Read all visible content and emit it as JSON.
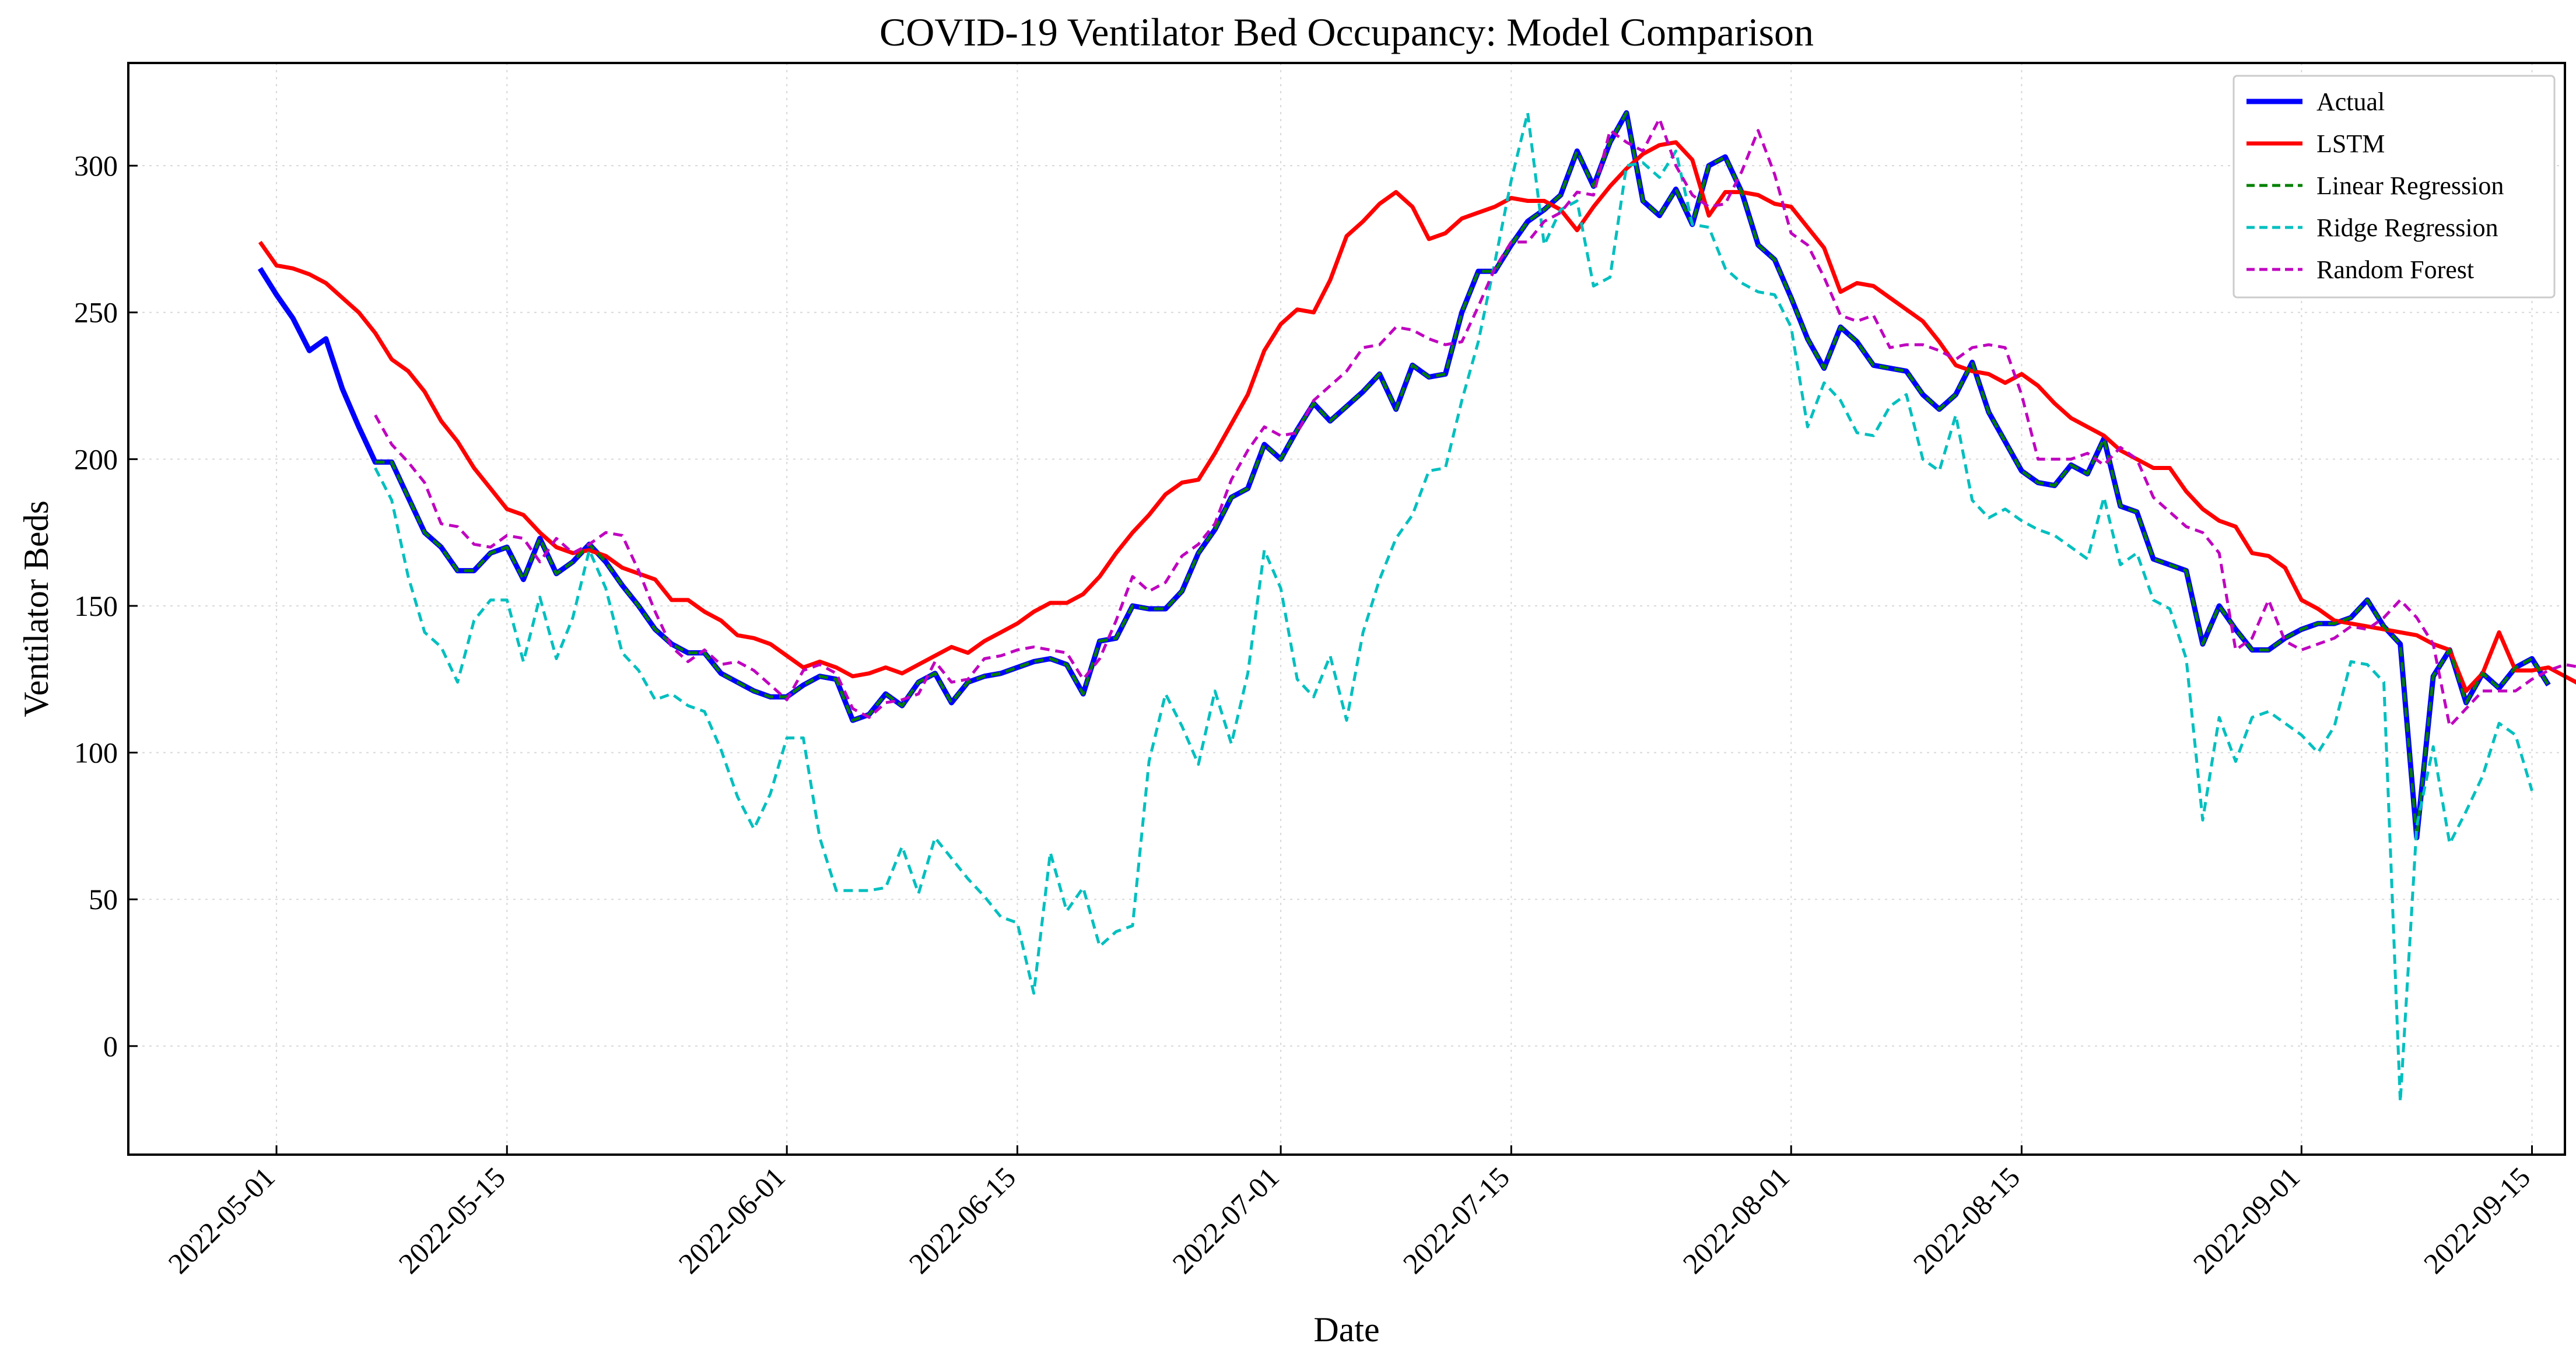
{
  "chart_data": {
    "type": "line",
    "title": "COVID-19 Ventilator Bed Occupancy: Model Comparison",
    "xlabel": "Date",
    "ylabel": "Ventilator Beds",
    "xlim": [
      "2022-04-22",
      "2022-09-17"
    ],
    "ylim": [
      -37,
      335
    ],
    "x_ticks": [
      "2022-05-01",
      "2022-05-15",
      "2022-06-01",
      "2022-06-15",
      "2022-07-01",
      "2022-07-15",
      "2022-08-01",
      "2022-08-15",
      "2022-09-01",
      "2022-09-15"
    ],
    "y_ticks": [
      0,
      50,
      100,
      150,
      200,
      250,
      300
    ],
    "grid": true,
    "legend_position": "top-right",
    "x_start_date": "2022-04-30",
    "colors": {
      "actual": "#0000ff",
      "lstm": "#ff0000",
      "linear": "#008000",
      "ridge": "#00bfbf",
      "forest": "#bf00bf"
    },
    "series": [
      {
        "name": "Actual",
        "key": "actual",
        "start": "2022-04-30",
        "values": [
          265,
          256,
          248,
          237,
          241,
          224,
          211,
          199,
          199,
          187,
          175,
          170,
          162,
          162,
          168,
          170,
          159,
          173,
          161,
          165,
          171,
          165,
          157,
          150,
          142,
          137,
          134,
          134,
          127,
          124,
          121,
          119,
          119,
          123,
          126,
          125,
          111,
          113,
          120,
          116,
          124,
          127,
          117,
          124,
          126,
          127,
          129,
          131,
          132,
          130,
          120,
          138,
          139,
          150,
          149,
          149,
          155,
          168,
          176,
          187,
          190,
          205,
          200,
          210,
          219,
          213,
          218,
          223,
          229,
          217,
          232,
          228,
          229,
          250,
          264,
          264,
          273,
          281,
          285,
          290,
          305,
          293,
          308,
          318,
          288,
          283,
          292,
          280,
          300,
          303,
          291,
          273,
          268,
          255,
          241,
          231,
          245,
          240,
          232,
          231,
          230,
          222,
          217,
          222,
          233,
          216,
          206,
          196,
          192,
          191,
          198,
          195,
          207,
          184,
          182,
          166,
          164,
          162,
          137,
          150,
          142,
          135,
          135,
          139,
          142,
          144,
          144,
          146,
          152,
          143,
          137,
          71,
          126,
          135,
          117,
          127,
          122,
          129,
          132,
          123
        ]
      },
      {
        "name": "LSTM",
        "key": "lstm",
        "start": "2022-04-30",
        "values": [
          274,
          266,
          265,
          263,
          260,
          255,
          250,
          243,
          234,
          230,
          223,
          213,
          206,
          197,
          190,
          183,
          181,
          175,
          170,
          168,
          169,
          167,
          163,
          161,
          159,
          152,
          152,
          148,
          145,
          140,
          139,
          137,
          133,
          129,
          131,
          129,
          126,
          127,
          129,
          127,
          130,
          133,
          136,
          134,
          138,
          141,
          144,
          148,
          151,
          151,
          154,
          160,
          168,
          175,
          181,
          188,
          192,
          193,
          202,
          212,
          222,
          237,
          246,
          251,
          250,
          261,
          276,
          281,
          287,
          291,
          286,
          275,
          277,
          282,
          284,
          286,
          289,
          288,
          288,
          285,
          278,
          286,
          293,
          299,
          304,
          307,
          308,
          302,
          283,
          291,
          291,
          290,
          287,
          286,
          279,
          272,
          257,
          260,
          259,
          255,
          251,
          247,
          240,
          232,
          230,
          229,
          226,
          229,
          225,
          219,
          214,
          211,
          208,
          203,
          200,
          197,
          197,
          189,
          183,
          179,
          177,
          168,
          167,
          163,
          152,
          149,
          145,
          144,
          143,
          142,
          141,
          140,
          137,
          135,
          121,
          127,
          141,
          128,
          128,
          129,
          126,
          123,
          124
        ]
      },
      {
        "name": "Linear Regression",
        "key": "linear",
        "start": "2022-05-07",
        "values": [
          199,
          199,
          187,
          175,
          170,
          162,
          162,
          168,
          170,
          159,
          173,
          161,
          165,
          171,
          165,
          157,
          150,
          142,
          137,
          134,
          134,
          127,
          124,
          121,
          119,
          119,
          123,
          126,
          125,
          111,
          113,
          120,
          116,
          124,
          127,
          117,
          124,
          126,
          127,
          129,
          131,
          132,
          130,
          120,
          138,
          139,
          150,
          149,
          149,
          155,
          168,
          176,
          187,
          190,
          205,
          200,
          210,
          219,
          213,
          218,
          223,
          229,
          217,
          232,
          228,
          229,
          250,
          264,
          264,
          273,
          281,
          285,
          290,
          305,
          293,
          308,
          318,
          288,
          283,
          292,
          280,
          300,
          303,
          291,
          273,
          268,
          255,
          241,
          231,
          245,
          240,
          232,
          231,
          230,
          222,
          217,
          222,
          233,
          216,
          206,
          196,
          192,
          191,
          198,
          195,
          207,
          184,
          182,
          166,
          164,
          162,
          137,
          150,
          142,
          135,
          135,
          139,
          142,
          144,
          144,
          146,
          152,
          143,
          137,
          71,
          126,
          135,
          117,
          127,
          122,
          129,
          132,
          123
        ]
      },
      {
        "name": "Ridge Regression",
        "key": "ridge",
        "start": "2022-05-07",
        "values": [
          197,
          186,
          160,
          141,
          136,
          124,
          145,
          152,
          152,
          131,
          153,
          132,
          146,
          169,
          156,
          134,
          128,
          118,
          120,
          116,
          114,
          101,
          85,
          74,
          86,
          105,
          105,
          71,
          53,
          53,
          53,
          54,
          68,
          52,
          71,
          64,
          57,
          51,
          44,
          42,
          18,
          66,
          46,
          54,
          34,
          39,
          41,
          97,
          120,
          109,
          96,
          121,
          103,
          127,
          169,
          156,
          125,
          119,
          133,
          111,
          141,
          159,
          173,
          181,
          196,
          197,
          220,
          240,
          267,
          295,
          318,
          273,
          285,
          288,
          259,
          262,
          300,
          301,
          296,
          305,
          280,
          279,
          265,
          260,
          257,
          256,
          245,
          211,
          226,
          220,
          209,
          208,
          218,
          222,
          200,
          196,
          215,
          186,
          180,
          183,
          179,
          176,
          174,
          170,
          166,
          187,
          164,
          168,
          152,
          149,
          132,
          77,
          112,
          97,
          112,
          114,
          110,
          106,
          100,
          109,
          131,
          130,
          124,
          -19,
          75,
          102,
          69,
          80,
          92,
          110,
          106,
          87
        ]
      },
      {
        "name": "Random Forest",
        "key": "forest",
        "start": "2022-05-07",
        "values": [
          215,
          205,
          199,
          192,
          178,
          177,
          171,
          170,
          174,
          173,
          165,
          173,
          168,
          171,
          175,
          174,
          162,
          148,
          136,
          131,
          135,
          130,
          131,
          128,
          123,
          118,
          128,
          130,
          127,
          115,
          112,
          117,
          118,
          120,
          131,
          124,
          125,
          132,
          133,
          135,
          136,
          135,
          134,
          125,
          132,
          145,
          160,
          155,
          158,
          167,
          171,
          178,
          193,
          203,
          211,
          208,
          209,
          220,
          225,
          230,
          238,
          239,
          245,
          244,
          241,
          239,
          240,
          252,
          265,
          274,
          274,
          281,
          284,
          291,
          290,
          312,
          308,
          305,
          316,
          300,
          290,
          286,
          287,
          298,
          312,
          297,
          277,
          273,
          262,
          249,
          247,
          249,
          238,
          239,
          239,
          237,
          234,
          238,
          239,
          238,
          222,
          200,
          200,
          200,
          202,
          198,
          204,
          200,
          187,
          182,
          177,
          175,
          168,
          135,
          139,
          152,
          138,
          135,
          137,
          139,
          143,
          142,
          146,
          152,
          146,
          137,
          109,
          115,
          121,
          121,
          121,
          125,
          128,
          130,
          129
        ]
      }
    ]
  }
}
